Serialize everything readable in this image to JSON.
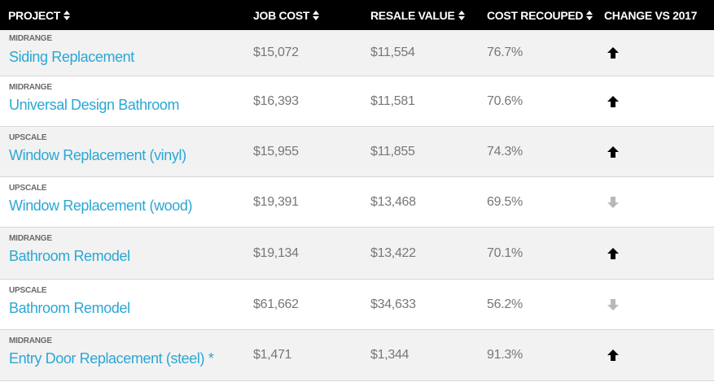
{
  "header": {
    "project": "PROJECT",
    "job_cost": "JOB COST",
    "resale_value": "RESALE VALUE",
    "cost_recouped": "COST RECOUPED",
    "change": "CHANGE VS 2017"
  },
  "colors": {
    "header_bg": "#000000",
    "row_alt_bg": "#f2f2f2",
    "link": "#2aa7d4",
    "value_text": "#777777",
    "arrow_up": "#000000",
    "arrow_down": "#b8b8b8"
  },
  "rows": [
    {
      "tier": "MIDRANGE",
      "name": "Siding Replacement",
      "job_cost": "$15,072",
      "resale": "$11,554",
      "recouped": "76.7%",
      "change": "up"
    },
    {
      "tier": "MIDRANGE",
      "name": "Universal Design Bathroom",
      "job_cost": "$16,393",
      "resale": "$11,581",
      "recouped": "70.6%",
      "change": "up"
    },
    {
      "tier": "UPSCALE",
      "name": "Window Replacement (vinyl)",
      "job_cost": "$15,955",
      "resale": "$11,855",
      "recouped": "74.3%",
      "change": "up"
    },
    {
      "tier": "UPSCALE",
      "name": "Window Replacement (wood)",
      "job_cost": "$19,391",
      "resale": "$13,468",
      "recouped": "69.5%",
      "change": "down"
    },
    {
      "tier": "MIDRANGE",
      "name": "Bathroom Remodel",
      "job_cost": "$19,134",
      "resale": "$13,422",
      "recouped": "70.1%",
      "change": "up"
    },
    {
      "tier": "UPSCALE",
      "name": "Bathroom Remodel",
      "job_cost": "$61,662",
      "resale": "$34,633",
      "recouped": "56.2%",
      "change": "down"
    },
    {
      "tier": "MIDRANGE",
      "name": "Entry Door Replacement (steel) *",
      "job_cost": "$1,471",
      "resale": "$1,344",
      "recouped": "91.3%",
      "change": "up"
    }
  ]
}
